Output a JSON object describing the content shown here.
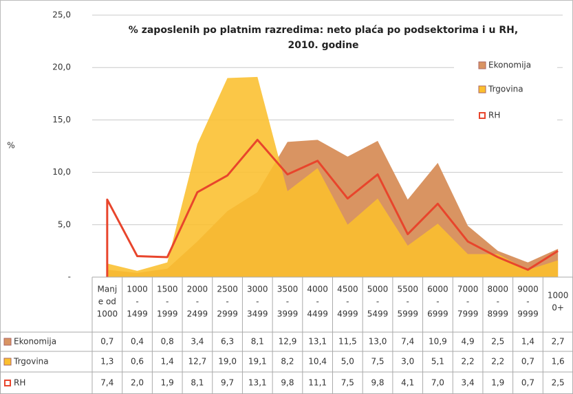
{
  "chart_data": {
    "type": "area",
    "title": [
      "% zaposlenih po platnim razredima: neto plaća po podsektorima i u RH,",
      "2010. godine"
    ],
    "ylabel": "%",
    "categories": [
      [
        "Manj",
        "e od",
        "1000"
      ],
      [
        "1000",
        "-",
        "1499"
      ],
      [
        "1500",
        "-",
        "1999"
      ],
      [
        "2000",
        "-",
        "2499"
      ],
      [
        "2500",
        "-",
        "2999"
      ],
      [
        "3000",
        "-",
        "3499"
      ],
      [
        "3500",
        "-",
        "3999"
      ],
      [
        "4000",
        "-",
        "4499"
      ],
      [
        "4500",
        "-",
        "4999"
      ],
      [
        "5000",
        "-",
        "5499"
      ],
      [
        "5500",
        "-",
        "5999"
      ],
      [
        "6000",
        "-",
        "6999"
      ],
      [
        "7000",
        "-",
        "7999"
      ],
      [
        "8000",
        "-",
        "8999"
      ],
      [
        "9000",
        "-",
        "9999"
      ],
      [
        "1000",
        "0+"
      ]
    ],
    "series": [
      {
        "name": "Ekonomija",
        "color": "#d99462",
        "style": "area",
        "values": [
          0.7,
          0.4,
          0.8,
          3.4,
          6.3,
          8.1,
          12.9,
          13.1,
          11.5,
          13.0,
          7.4,
          10.9,
          4.9,
          2.5,
          1.4,
          2.7
        ],
        "value_labels": [
          "0,7",
          "0,4",
          "0,8",
          "3,4",
          "6,3",
          "8,1",
          "12,9",
          "13,1",
          "11,5",
          "13,0",
          "7,4",
          "10,9",
          "4,9",
          "2,5",
          "1,4",
          "2,7"
        ]
      },
      {
        "name": "Trgovina",
        "color": "#fbbf2e",
        "style": "area",
        "values": [
          1.3,
          0.6,
          1.4,
          12.7,
          19.0,
          19.1,
          8.2,
          10.4,
          5.0,
          7.5,
          3.0,
          5.1,
          2.2,
          2.2,
          0.7,
          1.6
        ],
        "value_labels": [
          "1,3",
          "0,6",
          "1,4",
          "12,7",
          "19,0",
          "19,1",
          "8,2",
          "10,4",
          "5,0",
          "7,5",
          "3,0",
          "5,1",
          "2,2",
          "2,2",
          "0,7",
          "1,6"
        ]
      },
      {
        "name": "RH",
        "color": "#e8452c",
        "style": "line",
        "values": [
          7.4,
          2.0,
          1.9,
          8.1,
          9.7,
          13.1,
          9.8,
          11.1,
          7.5,
          9.8,
          4.1,
          7.0,
          3.4,
          1.9,
          0.7,
          2.5
        ],
        "value_labels": [
          "7,4",
          "2,0",
          "1,9",
          "8,1",
          "9,7",
          "13,1",
          "9,8",
          "11,1",
          "7,5",
          "9,8",
          "4,1",
          "7,0",
          "3,4",
          "1,9",
          "0,7",
          "2,5"
        ]
      }
    ],
    "ylim": [
      0,
      25
    ],
    "yticks": [
      {
        "value": 0,
        "label": "-"
      },
      {
        "value": 5,
        "label": "5,0"
      },
      {
        "value": 10,
        "label": "10,0"
      },
      {
        "value": 15,
        "label": "15,0"
      },
      {
        "value": 20,
        "label": "20,0"
      },
      {
        "value": 25,
        "label": "25,0"
      }
    ],
    "grid": true,
    "legend": "upper right"
  }
}
